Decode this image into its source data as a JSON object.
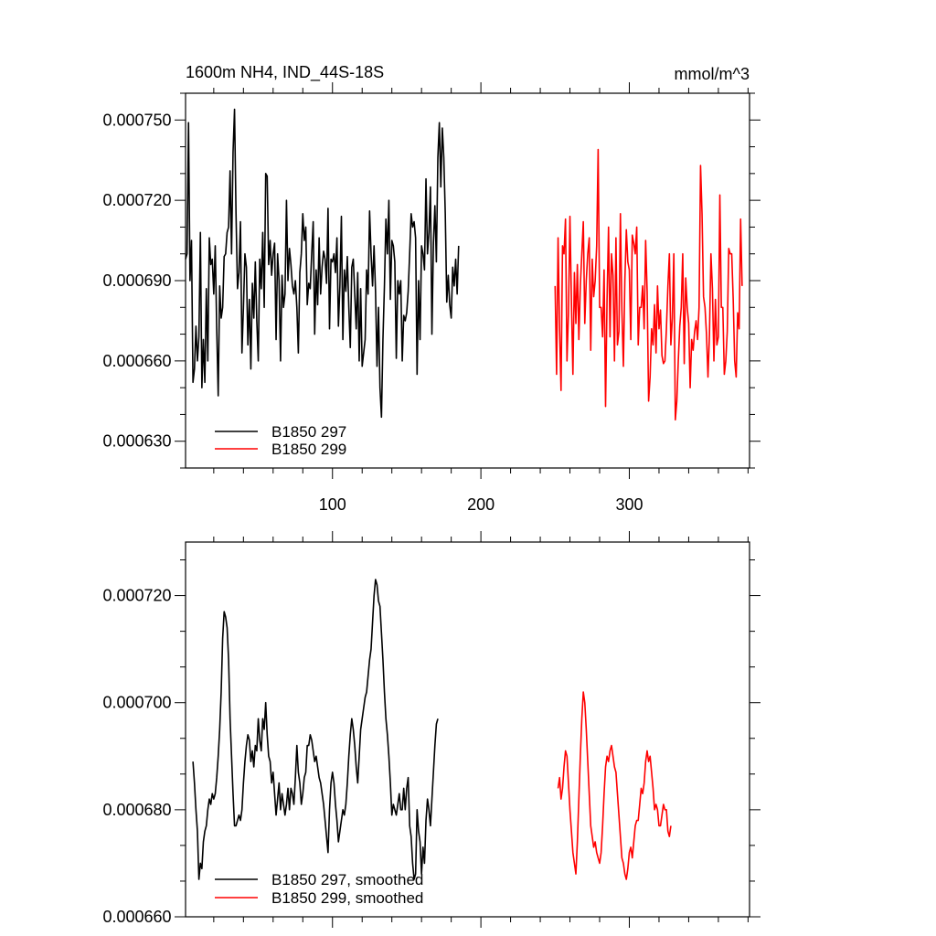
{
  "chart_data": [
    {
      "type": "line",
      "title": "1600m NH4, IND_44S-18S",
      "units": "mmol/m^3",
      "xlim": [
        1,
        381
      ],
      "ylim": [
        0.00062,
        0.00076
      ],
      "yticks": [
        "0.000630",
        "0.000660",
        "0.000690",
        "0.000720",
        "0.000750"
      ],
      "xticks": [
        "100",
        "200",
        "300"
      ],
      "legend_position": "bottom-left",
      "series": [
        {
          "name": "B1850 297",
          "color": "#000000",
          "x_start": 1,
          "values": [
            0.000698,
            0.0007,
            0.000749,
            0.00069,
            0.000705,
            0.000652,
            0.000657,
            0.000673,
            0.00066,
            0.000669,
            0.000708,
            0.00065,
            0.000668,
            0.000652,
            0.000687,
            0.00066,
            0.000706,
            0.000696,
            0.000698,
            0.000685,
            0.000703,
            0.000672,
            0.000647,
            0.000688,
            0.000676,
            0.00068,
            0.000699,
            0.0007,
            0.000708,
            0.00071,
            0.000731,
            0.0007,
            0.000738,
            0.000754,
            0.000715,
            0.000687,
            0.000693,
            0.000712,
            0.000663,
            0.00068,
            0.0007,
            0.000695,
            0.000666,
            0.000683,
            0.000657,
            0.000689,
            0.000676,
            0.000697,
            0.000675,
            0.00066,
            0.000698,
            0.000687,
            0.000708,
            0.00068,
            0.00073,
            0.000729,
            0.000696,
            0.000705,
            0.000692,
            0.0007,
            0.000704,
            0.000668,
            0.0007,
            0.00069,
            0.00066,
            0.000692,
            0.00068,
            0.000685,
            0.00072,
            0.00069,
            0.000702,
            0.000696,
            0.000688,
            0.000685,
            0.00069,
            0.00068,
            0.000663,
            0.000693,
            0.0007,
            0.000715,
            0.000705,
            0.00071,
            0.000681,
            0.000689,
            0.000687,
            0.0007,
            0.000712,
            0.00067,
            0.000694,
            0.000681,
            0.000706,
            0.000685,
            0.000695,
            0.000701,
            0.000698,
            0.000689,
            0.000717,
            0.000672,
            0.000698,
            0.000697,
            0.0007,
            0.000693,
            0.000706,
            0.000673,
            0.000688,
            0.000714,
            0.000668,
            0.000694,
            0.000686,
            0.000699,
            0.00068,
            0.000665,
            0.000695,
            0.000698,
            0.000685,
            0.000672,
            0.000693,
            0.00066,
            0.000687,
            0.000658,
            0.000663,
            0.000668,
            0.000694,
            0.000685,
            0.000716,
            0.0007,
            0.000688,
            0.000703,
            0.000686,
            0.000658,
            0.00068,
            0.00065,
            0.000639,
            0.000668,
            0.000688,
            0.000713,
            0.0007,
            0.00072,
            0.000683,
            0.000705,
            0.000703,
            0.000697,
            0.000661,
            0.00069,
            0.000685,
            0.00069,
            0.00066,
            0.000677,
            0.000675,
            0.000678,
            0.000686,
            0.0007,
            0.000715,
            0.00071,
            0.000712,
            0.000706,
            0.000655,
            0.00069,
            0.000668,
            0.000703,
            0.0007,
            0.000694,
            0.000728,
            0.0007,
            0.000708,
            0.000725,
            0.00067,
            0.000704,
            0.000718,
            0.000697,
            0.000736,
            0.000749,
            0.000725,
            0.000747,
            0.000736,
            0.000715,
            0.000682,
            0.000692,
            0.000681,
            0.000676,
            0.000695,
            0.000688,
            0.000698,
            0.000685,
            0.000703
          ],
          "x_end_note": ""
        },
        {
          "name": "B1850 299",
          "color": "#ff0000",
          "x_start": 250,
          "values": [
            0.000688,
            0.000655,
            0.000706,
            0.000672,
            0.000649,
            0.000703,
            0.0007,
            0.000713,
            0.00066,
            0.000678,
            0.000714,
            0.000682,
            0.000655,
            0.000693,
            0.000674,
            0.000696,
            0.000668,
            0.000688,
            0.0007,
            0.000712,
            0.000674,
            0.00069,
            0.0007,
            0.000706,
            0.000664,
            0.000698,
            0.000684,
            0.00069,
            0.000703,
            0.000739,
            0.00068,
            0.00068,
            0.000669,
            0.000694,
            0.000643,
            0.000683,
            0.00071,
            0.000669,
            0.0007,
            0.000692,
            0.00066,
            0.000706,
            0.000666,
            0.000671,
            0.000715,
            0.000679,
            0.000658,
            0.00069,
            0.000709,
            0.000697,
            0.000694,
            0.000668,
            0.000707,
            0.000704,
            0.0007,
            0.00071,
            0.000666,
            0.00068,
            0.00068,
            0.000688,
            0.000672,
            0.000705,
            0.000686,
            0.000645,
            0.000654,
            0.000672,
            0.000666,
            0.000681,
            0.000663,
            0.000688,
            0.000672,
            0.000679,
            0.000662,
            0.000659,
            0.00066,
            0.000672,
            0.000688,
            0.0007,
            0.000666,
            0.000676,
            0.0007,
            0.000638,
            0.000645,
            0.00066,
            0.000673,
            0.00068,
            0.0007,
            0.000659,
            0.000691,
            0.00068,
            0.000674,
            0.00065,
            0.000668,
            0.000664,
            0.000671,
            0.000675,
            0.000668,
            0.00068,
            0.000733,
            0.000715,
            0.000684,
            0.00068,
            0.00067,
            0.000654,
            0.00067,
            0.0007,
            0.000687,
            0.00066,
            0.000683,
            0.000666,
            0.000669,
            0.000722,
            0.00068,
            0.00068,
            0.000655,
            0.00066,
            0.000671,
            0.000702,
            0.0007,
            0.0007,
            0.000683,
            0.00066,
            0.000654,
            0.000678,
            0.000672,
            0.000713,
            0.000688
          ]
        }
      ]
    },
    {
      "type": "line",
      "title": "",
      "xlim": [
        1,
        381
      ],
      "ylim": [
        0.00066,
        0.00073
      ],
      "yticks": [
        "0.000660",
        "0.000680",
        "0.000700",
        "0.000720"
      ],
      "legend_position": "bottom-left",
      "series": [
        {
          "name": "B1850 297, smoothed",
          "color": "#000000",
          "x_start": 6,
          "values": [
            0.000689,
            0.000685,
            0.00068,
            0.000676,
            0.000667,
            0.00067,
            0.000669,
            0.000674,
            0.000676,
            0.000677,
            0.00068,
            0.000682,
            0.000681,
            0.000683,
            0.000682,
            0.000683,
            0.000686,
            0.00069,
            0.000695,
            0.000702,
            0.000712,
            0.000717,
            0.000716,
            0.000714,
            0.000708,
            0.000697,
            0.00069,
            0.000683,
            0.000677,
            0.000677,
            0.000678,
            0.000679,
            0.000678,
            0.00068,
            0.000685,
            0.000689,
            0.000692,
            0.000694,
            0.000693,
            0.000689,
            0.000691,
            0.000688,
            0.000692,
            0.000691,
            0.000697,
            0.000693,
            0.000691,
            0.000697,
            0.000695,
            0.0007,
            0.000694,
            0.00069,
            0.000689,
            0.000685,
            0.000687,
            0.000683,
            0.000679,
            0.000682,
            0.000685,
            0.00068,
            0.000683,
            0.000681,
            0.000679,
            0.000681,
            0.000684,
            0.00068,
            0.000684,
            0.000683,
            0.000681,
            0.000686,
            0.000692,
            0.000687,
            0.000685,
            0.000681,
            0.000683,
            0.000686,
            0.000687,
            0.000692,
            0.000692,
            0.000694,
            0.000693,
            0.000691,
            0.000689,
            0.00069,
            0.000688,
            0.000686,
            0.000685,
            0.000683,
            0.000681,
            0.000678,
            0.000675,
            0.000672,
            0.00068,
            0.000685,
            0.000687,
            0.000685,
            0.000681,
            0.000678,
            0.000674,
            0.000676,
            0.000678,
            0.00068,
            0.000679,
            0.000681,
            0.000685,
            0.00069,
            0.000694,
            0.000697,
            0.000695,
            0.000692,
            0.000688,
            0.000685,
            0.00069,
            0.000695,
            0.000697,
            0.000699,
            0.000701,
            0.000702,
            0.000705,
            0.000708,
            0.00071,
            0.000715,
            0.00072,
            0.000723,
            0.000722,
            0.000719,
            0.000718,
            0.000713,
            0.000708,
            0.000702,
            0.000697,
            0.000694,
            0.00069,
            0.000685,
            0.000679,
            0.000681,
            0.00068,
            0.000679,
            0.000681,
            0.000683,
            0.00068,
            0.00068,
            0.000684,
            0.00068,
            0.000684,
            0.000686,
            0.000677,
            0.000675,
            0.00067,
            0.000667,
            0.000668,
            0.00068,
            0.000676,
            0.000674,
            0.000668,
            0.000673,
            0.00067,
            0.000678,
            0.000682,
            0.00068,
            0.000677,
            0.000682,
            0.000687,
            0.000692,
            0.000696,
            0.000697
          ]
        },
        {
          "name": "B1850 299, smoothed",
          "color": "#ff0000",
          "x_start": 252,
          "values": [
            0.000684,
            0.000686,
            0.000682,
            0.000684,
            0.000688,
            0.000691,
            0.00069,
            0.000685,
            0.00068,
            0.000676,
            0.000672,
            0.00067,
            0.000668,
            0.000674,
            0.000682,
            0.00069,
            0.000697,
            0.000702,
            0.0007,
            0.000695,
            0.000689,
            0.000683,
            0.000677,
            0.000675,
            0.000673,
            0.000674,
            0.000672,
            0.000671,
            0.00067,
            0.000672,
            0.000677,
            0.000683,
            0.000688,
            0.00069,
            0.000689,
            0.000691,
            0.000692,
            0.00069,
            0.000688,
            0.000687,
            0.000683,
            0.000679,
            0.000675,
            0.000671,
            0.00067,
            0.000668,
            0.000667,
            0.000669,
            0.000672,
            0.000673,
            0.000671,
            0.000674,
            0.000677,
            0.000678,
            0.000678,
            0.000681,
            0.000684,
            0.000683,
            0.000685,
            0.000689,
            0.000691,
            0.000689,
            0.00069,
            0.000687,
            0.000684,
            0.00068,
            0.000681,
            0.00068,
            0.000677,
            0.000677,
            0.000679,
            0.000681,
            0.00068,
            0.00068,
            0.000676,
            0.000675,
            0.000677
          ]
        }
      ]
    }
  ]
}
